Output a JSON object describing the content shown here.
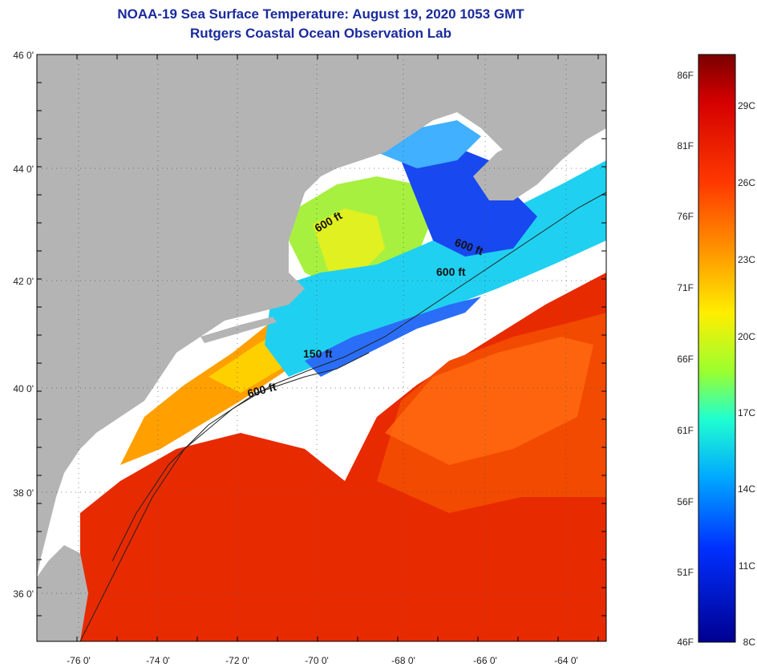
{
  "title": "NOAA-19 Sea Surface Temperature:  August 19, 2020 1053 GMT",
  "subtitle": "Rutgers Coastal Ocean Observation Lab",
  "lat_labels": [
    "46 0'",
    "44 0'",
    "42 0'",
    "40 0'",
    "38 0'",
    "36 0'"
  ],
  "lon_labels": [
    "-76 0'",
    "-74 0'",
    "-72 0'",
    "-70 0'",
    "-68 0'",
    "-66 0'",
    "-64 0'"
  ],
  "contour_labels": [
    "600 ft",
    "600 ft",
    "600 ft",
    "150 ft",
    "600 ft"
  ],
  "colorbar": {
    "fahrenheit": [
      "86F",
      "81F",
      "76F",
      "71F",
      "66F",
      "61F",
      "56F",
      "51F",
      "46F"
    ],
    "celsius": [
      "29C",
      "26C",
      "23C",
      "20C",
      "17C",
      "14C",
      "11C",
      "8C"
    ]
  },
  "colors": {
    "land": "#b4b4b4",
    "cloud": "#ffffff",
    "title": "#1a2a9c"
  }
}
